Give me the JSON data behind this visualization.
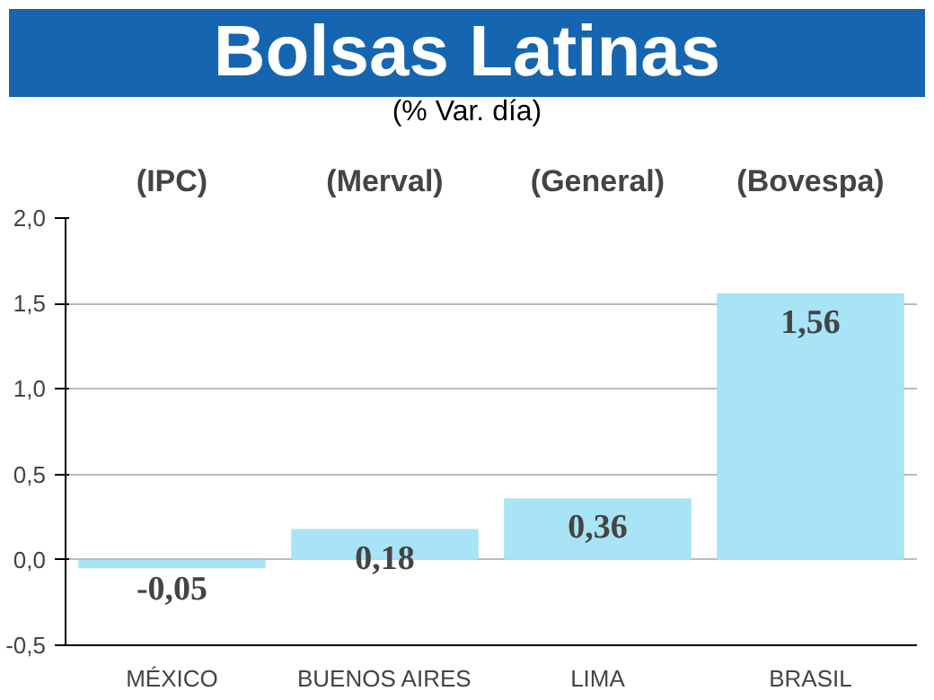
{
  "chart_data": {
    "type": "bar",
    "title": "Bolsas Latinas",
    "subtitle": "(% Var. día)",
    "categories": [
      "MÉXICO",
      "BUENOS AIRES",
      "LIMA",
      "BRASIL"
    ],
    "values": [
      -0.05,
      0.18,
      0.36,
      1.56
    ],
    "value_labels": [
      "-0,05",
      "0,18",
      "0,36",
      "1,56"
    ],
    "color": "#a8e3f6",
    "annotations": [
      "(IPC)",
      "(Merval)",
      "(General)",
      "(Bovespa)"
    ],
    "ylim": [
      -0.5,
      2.0
    ],
    "yticks": [
      {
        "value": -0.5,
        "label": "-0,5"
      },
      {
        "value": 0,
        "label": "0,0"
      },
      {
        "value": 0.5,
        "label": "0,5"
      },
      {
        "value": 1.0,
        "label": "1,0"
      },
      {
        "value": 1.5,
        "label": "1,5"
      },
      {
        "value": 2.0,
        "label": "2,0"
      }
    ],
    "grid": "y"
  }
}
